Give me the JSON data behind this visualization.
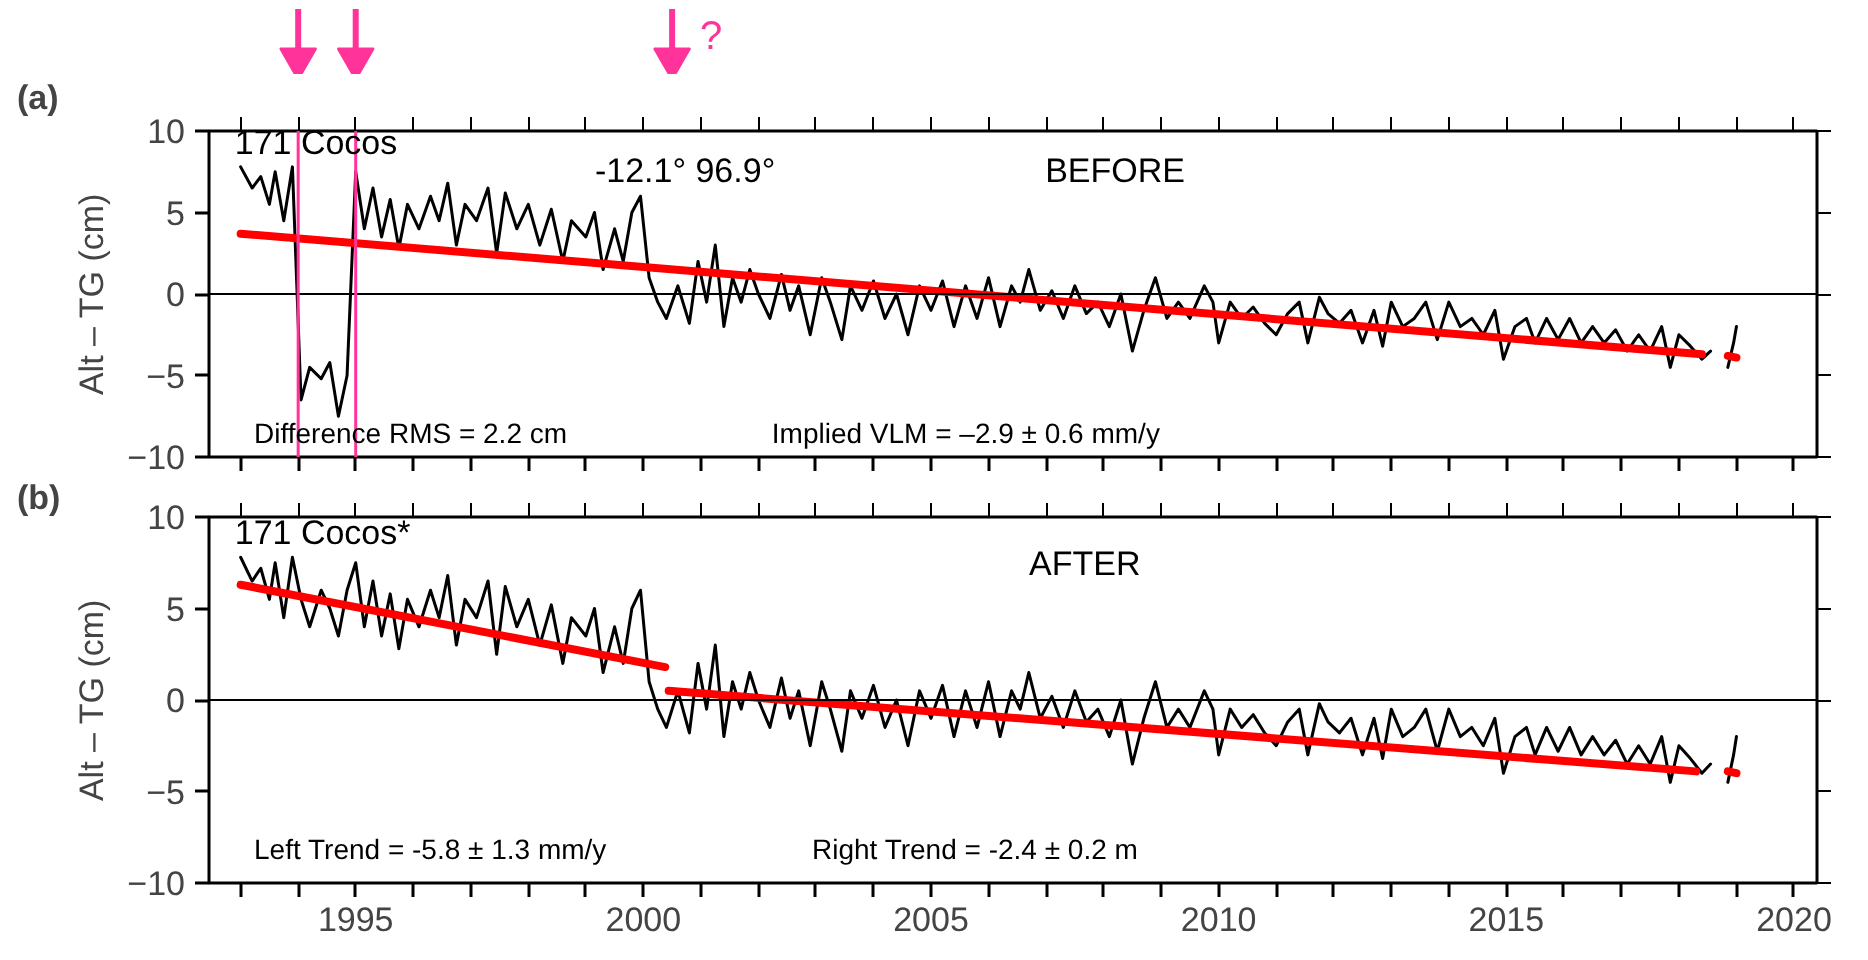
{
  "chart_data": [
    {
      "type": "line",
      "title": "(a)",
      "ylabel": "Alt – TG (cm)",
      "grid": false,
      "marker": "none",
      "line_style": "solid",
      "tick_labels": "y",
      "xlim": [
        1992.45,
        2020.4
      ],
      "ylim": [
        -10,
        10
      ],
      "yticks": [
        -10,
        -5,
        0,
        5,
        10
      ],
      "xticks": [
        {
          "value": 1993,
          "label": null
        },
        {
          "value": 1994,
          "label": null
        },
        1995,
        {
          "value": 1996,
          "label": null
        },
        {
          "value": 1997,
          "label": null
        },
        {
          "value": 1998,
          "label": null
        },
        {
          "value": 1999,
          "label": null
        },
        2000,
        {
          "value": 2001,
          "label": null
        },
        {
          "value": 2002,
          "label": null
        },
        {
          "value": 2003,
          "label": null
        },
        {
          "value": 2004,
          "label": null
        },
        2005,
        {
          "value": 2006,
          "label": null
        },
        {
          "value": 2007,
          "label": null
        },
        {
          "value": 2008,
          "label": null
        },
        {
          "value": 2009,
          "label": null
        },
        2010,
        {
          "value": 2011,
          "label": null
        },
        {
          "value": 2012,
          "label": null
        },
        {
          "value": 2013,
          "label": null
        },
        {
          "value": 2014,
          "label": null
        },
        2015,
        {
          "value": 2016,
          "label": null
        },
        {
          "value": 2017,
          "label": null
        },
        {
          "value": 2018,
          "label": null
        },
        {
          "value": 2019,
          "label": null
        },
        2020
      ],
      "series": [
        {
          "color": "#000000",
          "x": [
            1993.0,
            1993.2,
            1993.35,
            1993.5,
            1993.6,
            1993.75,
            1993.9,
            1994.05,
            1994.2,
            1994.4,
            1994.55,
            1994.7,
            1994.85,
            1995.0,
            1995.15,
            1995.3,
            1995.45,
            1995.6,
            1995.75,
            1995.9,
            1996.1,
            1996.3,
            1996.45,
            1996.6,
            1996.75,
            1996.9,
            1997.1,
            1997.3,
            1997.45,
            1997.6,
            1997.8,
            1998.0,
            1998.2,
            1998.4,
            1998.6,
            1998.75,
            1999.0,
            1999.15,
            1999.3,
            1999.5,
            1999.65,
            1999.8,
            1999.95,
            2000.1,
            2000.25,
            2000.4,
            2000.6,
            2000.8,
            2000.95,
            2001.1,
            2001.25,
            2001.4,
            2001.55,
            2001.7,
            2001.85,
            2002.0,
            2002.2,
            2002.4,
            2002.55,
            2002.7,
            2002.9,
            2003.1,
            2003.25,
            2003.45,
            2003.6,
            2003.8,
            2004.0,
            2004.2,
            2004.4,
            2004.6,
            2004.8,
            2005.0,
            2005.2,
            2005.4,
            2005.6,
            2005.8,
            2006.0,
            2006.2,
            2006.4,
            2006.55,
            2006.7,
            2006.9,
            2007.1,
            2007.3,
            2007.5,
            2007.7,
            2007.9,
            2008.1,
            2008.3,
            2008.5,
            2008.7,
            2008.9,
            2009.1,
            2009.3,
            2009.5,
            2009.75,
            2009.9,
            2010.0,
            2010.2,
            2010.4,
            2010.6,
            2010.8,
            2011.0,
            2011.2,
            2011.4,
            2011.55,
            2011.75,
            2011.9,
            2012.1,
            2012.3,
            2012.5,
            2012.7,
            2012.85,
            2013.0,
            2013.2,
            2013.4,
            2013.6,
            2013.8,
            2014.0,
            2014.2,
            2014.4,
            2014.6,
            2014.8,
            2014.95,
            2015.15,
            2015.35,
            2015.5,
            2015.7,
            2015.9,
            2016.1,
            2016.3,
            2016.5,
            2016.7,
            2016.9,
            2017.1,
            2017.3,
            2017.5,
            2017.7,
            2017.85,
            2018.0,
            2018.2,
            2018.4,
            2018.55,
            2018.7,
            2018.85,
            2018.95,
            2019.0
          ],
          "values": [
            7.8,
            6.5,
            7.2,
            5.5,
            7.5,
            4.5,
            7.8,
            -6.5,
            -4.5,
            -5.2,
            -4.2,
            -7.5,
            -5.0,
            7.5,
            4.0,
            6.5,
            3.5,
            5.8,
            2.8,
            5.5,
            4.0,
            6.0,
            4.5,
            6.8,
            3.0,
            5.5,
            4.5,
            6.5,
            2.5,
            6.2,
            4.0,
            5.5,
            3.0,
            5.2,
            2.0,
            4.5,
            3.5,
            5.0,
            1.5,
            4.0,
            2.0,
            5.0,
            6.0,
            1.0,
            -0.5,
            -1.5,
            0.5,
            -1.8,
            2.0,
            -0.5,
            3.0,
            -2.0,
            1.0,
            -0.5,
            1.5,
            0.0,
            -1.5,
            1.2,
            -1.0,
            0.5,
            -2.5,
            1.0,
            -0.5,
            -2.8,
            0.5,
            -1.0,
            0.8,
            -1.5,
            0.0,
            -2.5,
            0.5,
            -1.0,
            0.8,
            -2.0,
            0.5,
            -1.5,
            1.0,
            -2.0,
            0.5,
            -0.5,
            1.5,
            -1.0,
            0.2,
            -1.5,
            0.5,
            -1.2,
            -0.5,
            -2.0,
            0.0,
            -3.5,
            -1.0,
            1.0,
            -1.5,
            -0.5,
            -1.5,
            0.5,
            -0.5,
            -3.0,
            -0.5,
            -1.5,
            -0.8,
            -1.8,
            -2.5,
            -1.2,
            -0.5,
            -3.0,
            -0.2,
            -1.2,
            -1.8,
            -1.0,
            -3.0,
            -1.0,
            -3.2,
            -0.5,
            -2.0,
            -1.5,
            -0.5,
            -2.8,
            -0.5,
            -2.0,
            -1.5,
            -2.5,
            -1.0,
            -4.0,
            -2.0,
            -1.5,
            -3.0,
            -1.5,
            -2.8,
            -1.5,
            -3.0,
            -2.0,
            -3.0,
            -2.2,
            -3.5,
            -2.5,
            -3.5,
            -2.0,
            -4.5,
            -2.5,
            -3.2,
            -4.0,
            -3.5,
            null,
            -4.5,
            -3.0,
            -2.0
          ]
        },
        {
          "color": "#ff0000",
          "x": [
            1993.0,
            2018.4,
            2018.6,
            2018.85,
            2019.0
          ],
          "values": [
            3.7,
            -3.7,
            null,
            -3.8,
            -3.9
          ]
        }
      ],
      "ref_lines": [
        {
          "axis": "y",
          "value": 0,
          "color": "#000000"
        },
        {
          "axis": "x",
          "value": 1994,
          "color": "#ff3399"
        },
        {
          "axis": "x",
          "value": 1995,
          "color": "#ff3399"
        }
      ],
      "annotations": [
        "171 Cocos",
        "-12.1°   96.9°",
        "BEFORE",
        "Difference RMS =  2.2 cm",
        "Implied VLM = –2.9 ± 0.6 mm/y",
        "?"
      ]
    },
    {
      "type": "line",
      "title": "(b)",
      "ylabel": "Alt – TG (cm)",
      "grid": false,
      "marker": "none",
      "line_style": "solid",
      "xlim": [
        1992.45,
        2020.4
      ],
      "ylim": [
        -10,
        10
      ],
      "yticks": [
        -10,
        -5,
        0,
        5,
        10
      ],
      "xticks": [
        {
          "value": 1993,
          "label": null
        },
        {
          "value": 1994,
          "label": null
        },
        1995,
        {
          "value": 1996,
          "label": null
        },
        {
          "value": 1997,
          "label": null
        },
        {
          "value": 1998,
          "label": null
        },
        {
          "value": 1999,
          "label": null
        },
        2000,
        {
          "value": 2001,
          "label": null
        },
        {
          "value": 2002,
          "label": null
        },
        {
          "value": 2003,
          "label": null
        },
        {
          "value": 2004,
          "label": null
        },
        2005,
        {
          "value": 2006,
          "label": null
        },
        {
          "value": 2007,
          "label": null
        },
        {
          "value": 2008,
          "label": null
        },
        {
          "value": 2009,
          "label": null
        },
        2010,
        {
          "value": 2011,
          "label": null
        },
        {
          "value": 2012,
          "label": null
        },
        {
          "value": 2013,
          "label": null
        },
        {
          "value": 2014,
          "label": null
        },
        2015,
        {
          "value": 2016,
          "label": null
        },
        {
          "value": 2017,
          "label": null
        },
        {
          "value": 2018,
          "label": null
        },
        {
          "value": 2019,
          "label": null
        },
        2020
      ],
      "series": [
        {
          "color": "#000000",
          "x": [
            1993.0,
            1993.2,
            1993.35,
            1993.5,
            1993.6,
            1993.75,
            1993.9,
            1994.05,
            1994.2,
            1994.4,
            1994.55,
            1994.7,
            1994.85,
            1995.0,
            1995.15,
            1995.3,
            1995.45,
            1995.6,
            1995.75,
            1995.9,
            1996.1,
            1996.3,
            1996.45,
            1996.6,
            1996.75,
            1996.9,
            1997.1,
            1997.3,
            1997.45,
            1997.6,
            1997.8,
            1998.0,
            1998.2,
            1998.4,
            1998.6,
            1998.75,
            1999.0,
            1999.15,
            1999.3,
            1999.5,
            1999.65,
            1999.8,
            1999.95,
            2000.1,
            2000.25,
            2000.4,
            2000.6,
            2000.8,
            2000.95,
            2001.1,
            2001.25,
            2001.4,
            2001.55,
            2001.7,
            2001.85,
            2002.0,
            2002.2,
            2002.4,
            2002.55,
            2002.7,
            2002.9,
            2003.1,
            2003.25,
            2003.45,
            2003.6,
            2003.8,
            2004.0,
            2004.2,
            2004.4,
            2004.6,
            2004.8,
            2005.0,
            2005.2,
            2005.4,
            2005.6,
            2005.8,
            2006.0,
            2006.2,
            2006.4,
            2006.55,
            2006.7,
            2006.9,
            2007.1,
            2007.3,
            2007.5,
            2007.7,
            2007.9,
            2008.1,
            2008.3,
            2008.5,
            2008.7,
            2008.9,
            2009.1,
            2009.3,
            2009.5,
            2009.75,
            2009.9,
            2010.0,
            2010.2,
            2010.4,
            2010.6,
            2010.8,
            2011.0,
            2011.2,
            2011.4,
            2011.55,
            2011.75,
            2011.9,
            2012.1,
            2012.3,
            2012.5,
            2012.7,
            2012.85,
            2013.0,
            2013.2,
            2013.4,
            2013.6,
            2013.8,
            2014.0,
            2014.2,
            2014.4,
            2014.6,
            2014.8,
            2014.95,
            2015.15,
            2015.35,
            2015.5,
            2015.7,
            2015.9,
            2016.1,
            2016.3,
            2016.5,
            2016.7,
            2016.9,
            2017.1,
            2017.3,
            2017.5,
            2017.7,
            2017.85,
            2018.0,
            2018.2,
            2018.4,
            2018.55,
            2018.7,
            2018.85,
            2018.95,
            2019.0
          ],
          "values": [
            7.8,
            6.5,
            7.2,
            5.5,
            7.5,
            4.5,
            7.8,
            5.5,
            4.0,
            6.0,
            5.0,
            3.5,
            6.0,
            7.5,
            4.0,
            6.5,
            3.5,
            5.8,
            2.8,
            5.5,
            4.0,
            6.0,
            4.5,
            6.8,
            3.0,
            5.5,
            4.5,
            6.5,
            2.5,
            6.2,
            4.0,
            5.5,
            3.0,
            5.2,
            2.0,
            4.5,
            3.5,
            5.0,
            1.5,
            4.0,
            2.0,
            5.0,
            6.0,
            1.0,
            -0.5,
            -1.5,
            0.5,
            -1.8,
            2.0,
            -0.5,
            3.0,
            -2.0,
            1.0,
            -0.5,
            1.5,
            0.0,
            -1.5,
            1.2,
            -1.0,
            0.5,
            -2.5,
            1.0,
            -0.5,
            -2.8,
            0.5,
            -1.0,
            0.8,
            -1.5,
            0.0,
            -2.5,
            0.5,
            -1.0,
            0.8,
            -2.0,
            0.5,
            -1.5,
            1.0,
            -2.0,
            0.5,
            -0.5,
            1.5,
            -1.0,
            0.2,
            -1.5,
            0.5,
            -1.2,
            -0.5,
            -2.0,
            0.0,
            -3.5,
            -1.0,
            1.0,
            -1.5,
            -0.5,
            -1.5,
            0.5,
            -0.5,
            -3.0,
            -0.5,
            -1.5,
            -0.8,
            -1.8,
            -2.5,
            -1.2,
            -0.5,
            -3.0,
            -0.2,
            -1.2,
            -1.8,
            -1.0,
            -3.0,
            -1.0,
            -3.2,
            -0.5,
            -2.0,
            -1.5,
            -0.5,
            -2.8,
            -0.5,
            -2.0,
            -1.5,
            -2.5,
            -1.0,
            -4.0,
            -2.0,
            -1.5,
            -3.0,
            -1.5,
            -2.8,
            -1.5,
            -3.0,
            -2.0,
            -3.0,
            -2.2,
            -3.5,
            -2.5,
            -3.5,
            -2.0,
            -4.5,
            -2.5,
            -3.2,
            -4.0,
            -3.5,
            null,
            -4.5,
            -3.0,
            -2.0
          ]
        },
        {
          "color": "#ff0000",
          "x": [
            1993.0,
            2000.38
          ],
          "values": [
            6.3,
            1.8
          ]
        },
        {
          "color": "#ff0000",
          "x": [
            2000.44,
            2018.3,
            2018.6,
            2018.85,
            2019.0
          ],
          "values": [
            0.5,
            -3.9,
            null,
            -3.9,
            -4.0
          ]
        }
      ],
      "ref_lines": [
        {
          "axis": "y",
          "value": 0,
          "color": "#000000"
        }
      ],
      "annotations": [
        "171 Cocos*",
        "AFTER",
        "Left Trend = -5.8 ± 1.3 mm/y",
        "Right Trend = -2.4 ± 0.2 m"
      ]
    }
  ]
}
